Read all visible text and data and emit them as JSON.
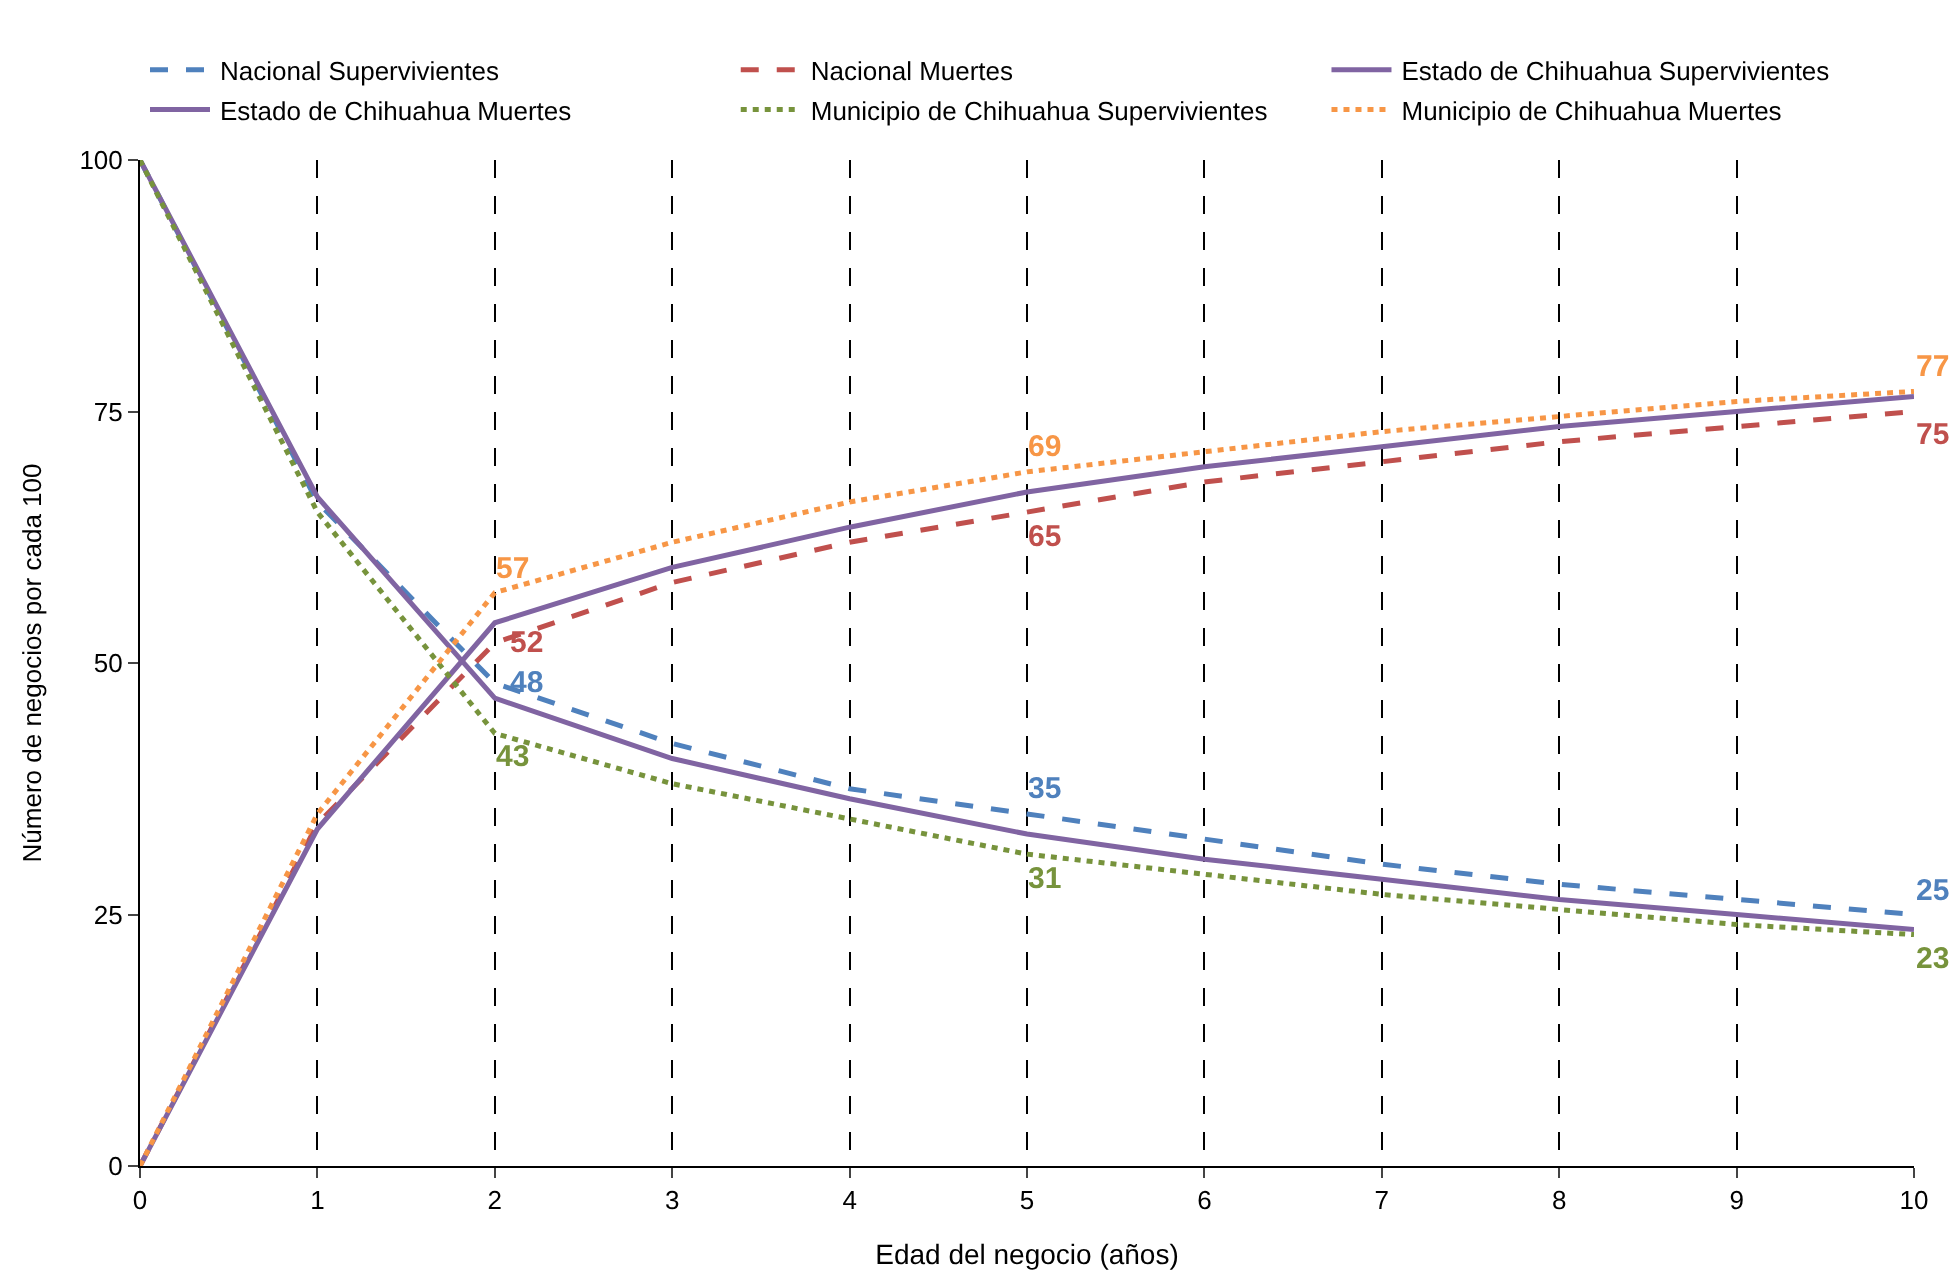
{
  "chart_data": {
    "type": "line",
    "xlabel": "Edad del negocio (años)",
    "ylabel": "Número de negocios por cada 100",
    "x": [
      0,
      1,
      2,
      3,
      4,
      5,
      6,
      7,
      8,
      9,
      10
    ],
    "xlim": [
      0,
      10
    ],
    "xticks": [
      0,
      1,
      2,
      3,
      4,
      5,
      6,
      7,
      8,
      9,
      10
    ],
    "ylim": [
      0,
      100
    ],
    "yticks": [
      0,
      25,
      50,
      75,
      100
    ],
    "grid": "x",
    "legend": "top",
    "series": [
      {
        "name": "Nacional Supervivientes",
        "color": "#4f81bd",
        "line_style": "dashed",
        "values": [
          100,
          66,
          48,
          42,
          37.5,
          35,
          32.5,
          30,
          28,
          26.5,
          25
        ],
        "value_labels": [
          null,
          null,
          "48",
          null,
          null,
          "35",
          null,
          null,
          null,
          null,
          "25"
        ]
      },
      {
        "name": "Nacional Muertes",
        "color": "#c0504d",
        "line_style": "dashed",
        "values": [
          0,
          34,
          52,
          58,
          62,
          65,
          68,
          70,
          72,
          73.5,
          75
        ],
        "value_labels": [
          null,
          null,
          "52",
          null,
          null,
          "65",
          null,
          null,
          null,
          null,
          "75"
        ]
      },
      {
        "name": "Estado de Chihuahua Supervivientes",
        "color": "#8064a2",
        "line_style": "solid",
        "values": [
          100,
          66.5,
          46.5,
          40.5,
          36.5,
          33,
          30.5,
          28.5,
          26.5,
          25,
          23.5
        ]
      },
      {
        "name": "Estado de Chihuahua Muertes",
        "color": "#8064a2",
        "line_style": "solid",
        "values": [
          0,
          33.5,
          54,
          59.5,
          63.5,
          67,
          69.5,
          71.5,
          73.5,
          75,
          76.5
        ]
      },
      {
        "name": "Municipio de Chihuahua Supervivientes",
        "color": "#77933c",
        "line_style": "dotted",
        "values": [
          100,
          65,
          43,
          38,
          34.5,
          31,
          29,
          27,
          25.5,
          24,
          23
        ],
        "value_labels": [
          null,
          null,
          "43",
          null,
          null,
          "31",
          null,
          null,
          null,
          null,
          "23"
        ]
      },
      {
        "name": "Municipio de Chihuahua Muertes",
        "color": "#f79646",
        "line_style": "dotted",
        "values": [
          0,
          35,
          57,
          62,
          66,
          69,
          71,
          73,
          74.5,
          76,
          77
        ],
        "value_labels": [
          null,
          null,
          "57",
          null,
          null,
          "69",
          null,
          null,
          null,
          null,
          "77"
        ]
      }
    ]
  }
}
